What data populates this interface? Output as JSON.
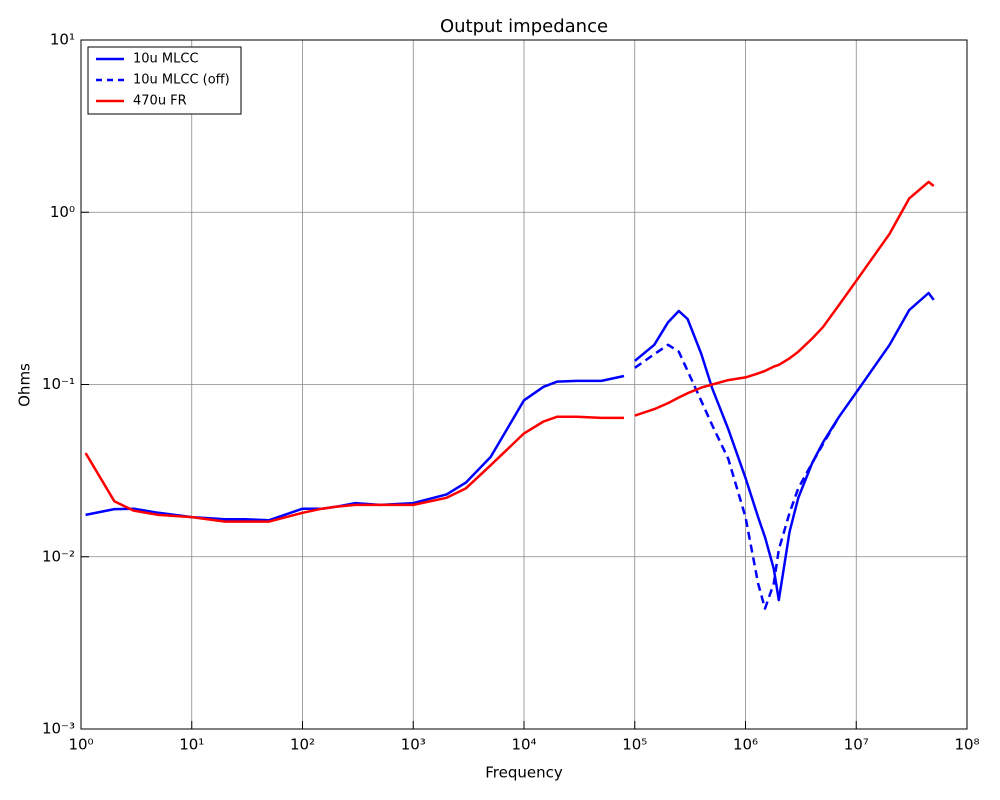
{
  "chart_data": {
    "type": "line",
    "title": "Output impedance",
    "x_label": "Frequency",
    "y_label": "Ohms",
    "x": [
      1.1,
      2,
      3,
      5,
      10,
      20,
      30,
      50,
      100,
      150,
      200,
      300,
      500,
      1000,
      2000,
      3000,
      5000,
      10000,
      15000,
      20000,
      30000,
      50000,
      80000,
      90000,
      100000,
      150000,
      200000,
      250000,
      300000,
      400000,
      500000,
      700000,
      1000000,
      1300000,
      1500000,
      1800000,
      2000000,
      2500000,
      3000000,
      4000000,
      5000000,
      7000000,
      10000000,
      20000000,
      30000000,
      45000000,
      50000000
    ],
    "series": [
      {
        "name": "10u MLCC",
        "color": "#0000ff",
        "dashed": false,
        "values": [
          0.0175,
          0.0189,
          0.019,
          0.018,
          0.017,
          0.0165,
          0.0165,
          0.0163,
          0.019,
          0.019,
          0.0195,
          0.0205,
          0.02,
          0.0205,
          0.023,
          0.027,
          0.038,
          0.081,
          0.097,
          0.104,
          0.105,
          0.105,
          0.112,
          null,
          0.137,
          0.17,
          0.23,
          0.267,
          0.24,
          0.15,
          0.095,
          0.055,
          0.0287,
          0.017,
          0.013,
          0.0085,
          0.0056,
          0.014,
          0.022,
          0.035,
          0.046,
          0.065,
          0.09,
          0.17,
          0.27,
          0.34,
          0.31
        ]
      },
      {
        "name": "10u MLCC (off)",
        "color": "#0000ff",
        "dashed": true,
        "values": [
          null,
          null,
          null,
          null,
          null,
          null,
          null,
          null,
          null,
          null,
          null,
          null,
          null,
          null,
          null,
          null,
          null,
          null,
          null,
          null,
          null,
          null,
          null,
          null,
          0.125,
          0.15,
          0.17,
          0.155,
          0.12,
          0.08,
          0.058,
          0.037,
          0.017,
          0.007,
          0.005,
          0.007,
          0.011,
          0.018,
          0.025,
          0.035,
          0.045,
          0.065,
          null,
          null,
          null,
          null,
          null
        ]
      },
      {
        "name": "470u FR",
        "color": "#ff0000",
        "dashed": false,
        "values": [
          0.04,
          0.021,
          0.0185,
          0.0175,
          0.017,
          0.016,
          0.016,
          0.016,
          0.018,
          0.019,
          0.0195,
          0.02,
          0.02,
          0.02,
          0.022,
          0.025,
          0.034,
          0.052,
          0.061,
          0.065,
          0.065,
          0.064,
          0.064,
          null,
          0.066,
          0.072,
          0.078,
          0.084,
          0.089,
          0.096,
          0.1,
          0.106,
          0.11,
          0.116,
          0.12,
          0.127,
          0.13,
          0.142,
          0.155,
          0.185,
          0.215,
          0.29,
          0.4,
          0.75,
          1.2,
          1.5,
          1.42
        ]
      }
    ],
    "xlog": true,
    "ylog": true,
    "xlim": [
      1,
      100000000
    ],
    "ylim": [
      0.001,
      10
    ],
    "xticks": [
      {
        "value": 1,
        "label": "10⁰"
      },
      {
        "value": 10,
        "label": "10¹"
      },
      {
        "value": 100,
        "label": "10²"
      },
      {
        "value": 1000,
        "label": "10³"
      },
      {
        "value": 10000,
        "label": "10⁴"
      },
      {
        "value": 100000,
        "label": "10⁵"
      },
      {
        "value": 1000000,
        "label": "10⁶"
      },
      {
        "value": 10000000,
        "label": "10⁷"
      },
      {
        "value": 100000000,
        "label": "10⁸"
      }
    ],
    "yticks": [
      {
        "value": 0.001,
        "label": "10⁻³"
      },
      {
        "value": 0.01,
        "label": "10⁻²"
      },
      {
        "value": 0.1,
        "label": "10⁻¹"
      },
      {
        "value": 1,
        "label": "10⁰"
      },
      {
        "value": 10,
        "label": "10¹"
      }
    ],
    "grid": true,
    "legend": "upper left"
  }
}
